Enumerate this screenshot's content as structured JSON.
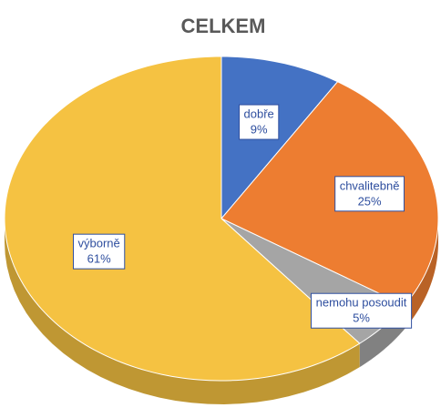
{
  "chart_data": {
    "type": "pie",
    "title": "CELKEM",
    "categories": [
      "dobře",
      "chvalitebně",
      "nemohu posoudit",
      "výborně"
    ],
    "values": [
      9,
      25,
      5,
      61
    ],
    "value_labels": [
      "9%",
      "25%",
      "5%",
      "61%"
    ],
    "colors": [
      "#4472c4",
      "#ed7d31",
      "#a5a5a5",
      "#f5c242"
    ]
  }
}
